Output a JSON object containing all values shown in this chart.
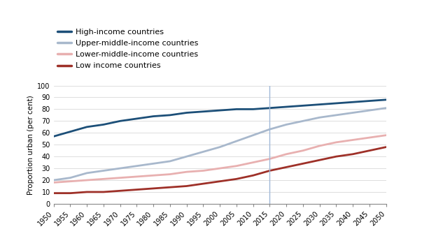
{
  "ylabel": "Proportion urban (per cent)",
  "years": [
    1950,
    1955,
    1960,
    1965,
    1970,
    1975,
    1980,
    1985,
    1990,
    1995,
    2000,
    2005,
    2010,
    2015,
    2020,
    2025,
    2030,
    2035,
    2040,
    2045,
    2050
  ],
  "high_income": [
    57,
    61,
    65,
    67,
    70,
    72,
    74,
    75,
    77,
    78,
    79,
    80,
    80,
    81,
    82,
    83,
    84,
    85,
    86,
    87,
    88
  ],
  "upper_middle_income": [
    20,
    22,
    26,
    28,
    30,
    32,
    34,
    36,
    40,
    44,
    48,
    53,
    58,
    63,
    67,
    70,
    73,
    75,
    77,
    79,
    81
  ],
  "lower_middle_income": [
    18,
    19,
    20,
    21,
    22,
    23,
    24,
    25,
    27,
    28,
    30,
    32,
    35,
    38,
    42,
    45,
    49,
    52,
    54,
    56,
    58
  ],
  "low_income": [
    9,
    9,
    10,
    10,
    11,
    12,
    13,
    14,
    15,
    17,
    19,
    21,
    24,
    28,
    31,
    34,
    37,
    40,
    42,
    45,
    48
  ],
  "colors": {
    "high_income": "#1c4f78",
    "upper_middle_income": "#a8b8cc",
    "lower_middle_income": "#e8b0b0",
    "low_income": "#9e3028"
  },
  "legend_labels": [
    "High-income countries",
    "Upper-middle-income countries",
    "Lower-middle-income countries",
    "Low income countries"
  ],
  "legend_keys": [
    "high_income",
    "upper_middle_income",
    "lower_middle_income",
    "low_income"
  ],
  "vline_year": 2015,
  "vline_color": "#a0b8d8",
  "ylim": [
    0,
    100
  ],
  "yticks": [
    0,
    10,
    20,
    30,
    40,
    50,
    60,
    70,
    80,
    90,
    100
  ],
  "linewidth": 2.0,
  "background_color": "#ffffff",
  "legend_fontsize": 8.0,
  "axis_fontsize": 7.0,
  "ylabel_fontsize": 7.5
}
